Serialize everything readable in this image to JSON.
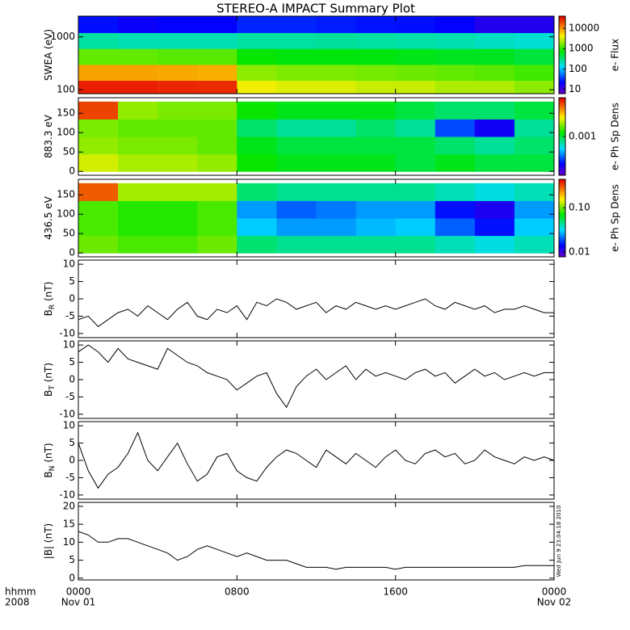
{
  "title": "STEREO-A IMPACT Summary Plot",
  "timestamp": "Wed Jun  9 23:04:18 2010",
  "x_axis": {
    "xlim": [
      0,
      24
    ],
    "xticks": [
      {
        "value": 0,
        "label": "0000"
      },
      {
        "value": 8,
        "label": "0800"
      },
      {
        "value": 16,
        "label": "1600"
      },
      {
        "value": 24,
        "label": "0000"
      }
    ],
    "xtick_dates": [
      {
        "value": 0,
        "label": "Nov 01"
      },
      {
        "value": 24,
        "label": "Nov 02"
      }
    ],
    "unit_label": "hhmm",
    "year_label": "2008",
    "x": [
      0,
      0.5,
      1,
      1.5,
      2,
      2.5,
      3,
      3.5,
      4,
      4.5,
      5,
      5.5,
      6,
      6.5,
      7,
      7.5,
      8,
      8.5,
      9,
      9.5,
      10,
      10.5,
      11,
      11.5,
      12,
      12.5,
      13,
      13.5,
      14,
      14.5,
      15,
      15.5,
      16,
      16.5,
      17,
      17.5,
      18,
      18.5,
      19,
      19.5,
      20,
      20.5,
      21,
      21.5,
      22,
      22.5,
      23,
      23.5,
      24
    ]
  },
  "chart_data": [
    {
      "type": "heatmap",
      "ylabel": "SWEA (eV)",
      "ylog": true,
      "ylim": [
        84,
        2460
      ],
      "yticks": [
        100,
        1000
      ],
      "xbins": [
        0,
        2,
        4,
        6,
        8,
        10,
        12,
        14,
        16,
        18,
        20,
        22,
        24
      ],
      "ybins": [
        84,
        150,
        300,
        600,
        1200,
        2460
      ],
      "values": [
        [
          30000,
          30000,
          28000,
          27000,
          4000,
          3500,
          3500,
          3000,
          3000,
          2500,
          2500,
          2000
        ],
        [
          9000,
          9000,
          8500,
          8000,
          2000,
          1800,
          1800,
          1700,
          1600,
          1500,
          1400,
          1200
        ],
        [
          1500,
          1500,
          1400,
          1400,
          800,
          700,
          700,
          700,
          650,
          600,
          600,
          500
        ],
        [
          250,
          220,
          220,
          220,
          250,
          250,
          260,
          250,
          240,
          230,
          200,
          180
        ],
        [
          25,
          20,
          22,
          22,
          30,
          30,
          28,
          26,
          25,
          22,
          15,
          15
        ]
      ],
      "zlog": true,
      "zlim": [
        6,
        40000
      ],
      "zticks": [
        10,
        100,
        1000,
        10000
      ],
      "colorbar_label": "e- Flux",
      "colormap": "rainbow"
    },
    {
      "type": "heatmap",
      "ylabel": "883.3 eV",
      "ylog": false,
      "ylim": [
        -10,
        190
      ],
      "yticks": [
        0,
        50,
        100,
        150
      ],
      "xbins": [
        0,
        2,
        4,
        6,
        8,
        10,
        12,
        14,
        16,
        18,
        20,
        22,
        24
      ],
      "ybins": [
        0,
        45,
        90,
        135,
        180
      ],
      "values": [
        [
          0.002,
          0.0018,
          0.0018,
          0.0017,
          0.0012,
          0.0011,
          0.0011,
          0.0011,
          0.001,
          0.0011,
          0.001,
          0.001
        ],
        [
          0.0017,
          0.0016,
          0.0016,
          0.0015,
          0.0011,
          0.001,
          0.001,
          0.001,
          0.001,
          0.0009,
          0.0008,
          0.0009
        ],
        [
          0.0016,
          0.0015,
          0.0015,
          0.0015,
          0.0009,
          0.0008,
          0.0008,
          0.0009,
          0.0008,
          0.0004,
          0.0003,
          0.0008
        ],
        [
          0.004,
          0.0017,
          0.0016,
          0.0016,
          0.0012,
          0.0011,
          0.0011,
          0.0011,
          0.001,
          0.0009,
          0.0009,
          0.001
        ]
      ],
      "zlog": true,
      "zlim": [
        0.0002,
        0.005
      ],
      "zticks": [
        0.001
      ],
      "colorbar_label": "e- Ph Sp Dens",
      "colormap": "rainbow"
    },
    {
      "type": "heatmap",
      "ylabel": "436.5 eV",
      "ylog": false,
      "ylim": [
        -10,
        190
      ],
      "yticks": [
        0,
        50,
        100,
        150
      ],
      "xbins": [
        0,
        2,
        4,
        6,
        8,
        10,
        12,
        14,
        16,
        18,
        20,
        22,
        24
      ],
      "ybins": [
        0,
        45,
        90,
        135,
        180
      ],
      "values": [
        [
          0.1,
          0.09,
          0.09,
          0.1,
          0.05,
          0.045,
          0.045,
          0.045,
          0.045,
          0.04,
          0.035,
          0.04
        ],
        [
          0.09,
          0.08,
          0.08,
          0.09,
          0.03,
          0.025,
          0.025,
          0.028,
          0.03,
          0.02,
          0.015,
          0.03
        ],
        [
          0.09,
          0.08,
          0.08,
          0.09,
          0.025,
          0.02,
          0.022,
          0.025,
          0.025,
          0.015,
          0.012,
          0.025
        ],
        [
          0.3,
          0.12,
          0.12,
          0.12,
          0.05,
          0.045,
          0.045,
          0.045,
          0.045,
          0.04,
          0.035,
          0.04
        ]
      ],
      "zlog": true,
      "zlim": [
        0.0077,
        0.44
      ],
      "zticks": [
        {
          "value": 0.1,
          "label": "0.10"
        },
        0.01
      ],
      "colorbar_label": "e- Ph Sp Dens",
      "colormap": "rainbow"
    },
    {
      "type": "line",
      "ylabel": "B",
      "ylabel_sub": "R",
      "ylabel_unit": "(nT)",
      "ylim": [
        -11.2,
        11.2
      ],
      "yticks": [
        -10,
        -5,
        0,
        5,
        10
      ],
      "color": "#000000",
      "values": [
        -6,
        -5,
        -8,
        -6,
        -4,
        -3,
        -5,
        -2,
        -4,
        -6,
        -3,
        -1,
        -5,
        -6,
        -3,
        -4,
        -2,
        -6,
        -1,
        -2,
        0,
        -1,
        -3,
        -2,
        -1,
        -4,
        -2,
        -3,
        -1,
        -2,
        -3,
        -2,
        -3,
        -2,
        -1,
        0,
        -2,
        -3,
        -1,
        -2,
        -3,
        -2,
        -4,
        -3,
        -3,
        -2,
        -3,
        -4,
        -4
      ]
    },
    {
      "type": "line",
      "ylabel": "B",
      "ylabel_sub": "T",
      "ylabel_unit": "(nT)",
      "ylim": [
        -11.2,
        11.2
      ],
      "yticks": [
        -10,
        -5,
        0,
        5,
        10
      ],
      "color": "#000000",
      "values": [
        8,
        10,
        8,
        5,
        9,
        6,
        5,
        4,
        3,
        9,
        7,
        5,
        4,
        2,
        1,
        0,
        -3,
        -1,
        1,
        2,
        -4,
        -8,
        -2,
        1,
        3,
        0,
        2,
        4,
        0,
        3,
        1,
        2,
        1,
        0,
        2,
        3,
        1,
        2,
        -1,
        1,
        3,
        1,
        2,
        0,
        1,
        2,
        1,
        2,
        2
      ]
    },
    {
      "type": "line",
      "ylabel": "B",
      "ylabel_sub": "N",
      "ylabel_unit": "(nT)",
      "ylim": [
        -11.2,
        11.2
      ],
      "yticks": [
        -10,
        -5,
        0,
        5,
        10
      ],
      "color": "#000000",
      "values": [
        5,
        -3,
        -8,
        -4,
        -2,
        2,
        8,
        0,
        -3,
        1,
        5,
        -1,
        -6,
        -4,
        1,
        2,
        -3,
        -5,
        -6,
        -2,
        1,
        3,
        2,
        0,
        -2,
        3,
        1,
        -1,
        2,
        0,
        -2,
        1,
        3,
        0,
        -1,
        2,
        3,
        1,
        2,
        -1,
        0,
        3,
        1,
        0,
        -1,
        1,
        0,
        1,
        0
      ]
    },
    {
      "type": "line",
      "ylabel": "|B| (nT)",
      "ylim": [
        -0.5,
        21.1
      ],
      "yticks": [
        0,
        5,
        10,
        15,
        20
      ],
      "color": "#000000",
      "values": [
        13,
        12,
        10,
        10,
        11,
        11,
        10,
        9,
        8,
        7,
        5,
        6,
        8,
        9,
        8,
        7,
        6,
        7,
        6,
        5,
        5,
        5,
        4,
        3,
        3,
        3,
        2.5,
        3,
        3,
        3,
        3,
        3,
        2.5,
        3,
        3,
        3,
        3,
        3,
        3,
        3,
        3,
        3,
        3,
        3,
        3,
        3.5,
        3.5,
        3.5,
        3.5
      ]
    }
  ]
}
